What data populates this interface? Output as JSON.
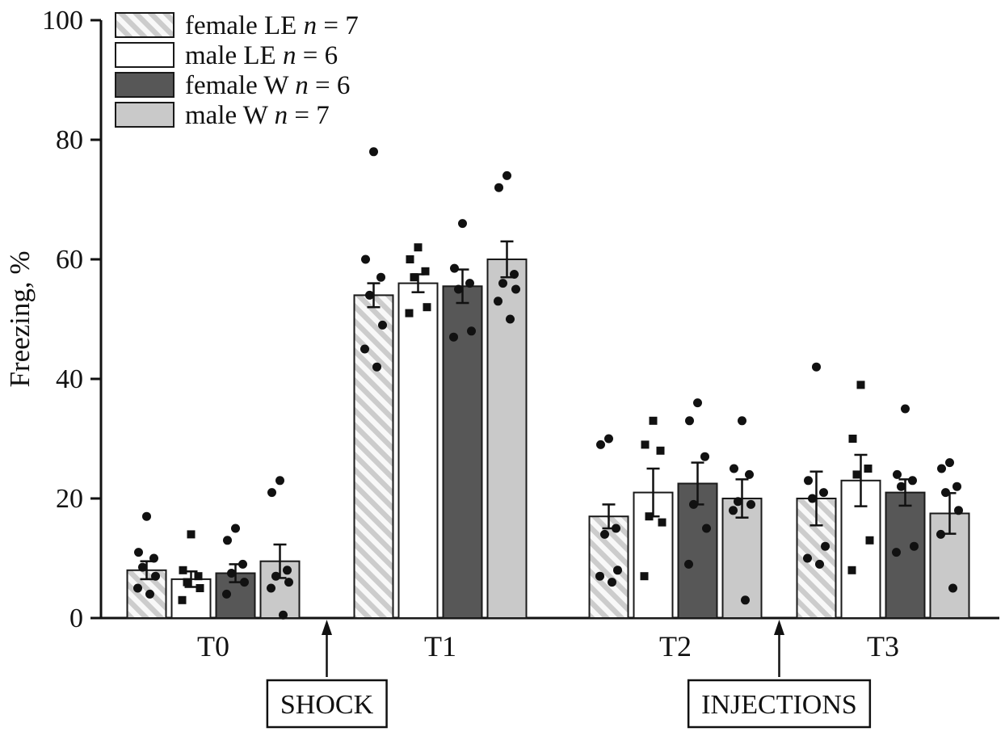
{
  "chart_data": {
    "type": "bar",
    "title": "",
    "ylabel": "Freezing, %",
    "xlabel": "",
    "ylim": [
      0,
      100
    ],
    "yticks": [
      0,
      20,
      40,
      60,
      80,
      100
    ],
    "categories": [
      "T0",
      "T1",
      "T2",
      "T3"
    ],
    "grid": false,
    "legend_position": "top-left",
    "colors": {
      "axis": "#111111",
      "bar_stroke": "#1a1a1a",
      "point": "#111111",
      "hatch_bg": "#f8f8f8",
      "hatch_stripe": "#cccccc",
      "white_bar": "#ffffff",
      "dark_gray_bar": "#575757",
      "light_gray_bar": "#c9c9c9",
      "annotation_box_fill": "#ffffff"
    },
    "series": [
      {
        "name": "female LE n = 7",
        "n": 7,
        "fill": "hatch",
        "marker": "circle",
        "values": [
          8,
          54,
          17,
          20
        ],
        "errors": [
          1.5,
          2,
          2,
          4.5
        ],
        "points": [
          [
            17,
            11,
            10,
            8.5,
            7,
            5,
            4
          ],
          [
            78,
            60,
            57,
            54,
            49,
            45,
            42
          ],
          [
            30,
            29,
            15,
            14,
            8,
            7,
            6
          ],
          [
            42,
            23,
            21,
            20,
            12,
            10,
            9
          ]
        ]
      },
      {
        "name": "male LE n = 6",
        "n": 6,
        "fill": "white",
        "marker": "square",
        "values": [
          6.5,
          56,
          21,
          23
        ],
        "errors": [
          1.3,
          1.5,
          4,
          4.3
        ],
        "points": [
          [
            14,
            8,
            7,
            6,
            5,
            3
          ],
          [
            62,
            60,
            58,
            57,
            52,
            51
          ],
          [
            33,
            29,
            28,
            17,
            16,
            7
          ],
          [
            39,
            30,
            25,
            24,
            13,
            8
          ]
        ]
      },
      {
        "name": "female W n = 6",
        "n": 6,
        "fill": "dark_gray",
        "marker": "circle",
        "values": [
          7.5,
          55.5,
          22.5,
          21
        ],
        "errors": [
          1.5,
          2.8,
          3.5,
          2.2
        ],
        "points": [
          [
            15,
            13,
            9,
            7.5,
            6,
            4
          ],
          [
            66,
            58.5,
            56,
            55,
            48,
            47
          ],
          [
            36,
            33,
            27,
            19,
            15,
            9
          ],
          [
            35,
            24,
            23,
            22,
            12,
            11
          ]
        ]
      },
      {
        "name": "male W n = 7",
        "n": 7,
        "fill": "light_gray",
        "marker": "circle",
        "values": [
          9.5,
          60,
          20,
          17.5
        ],
        "errors": [
          2.8,
          3,
          3.2,
          3.4
        ],
        "points": [
          [
            23,
            21,
            8,
            7,
            6,
            5,
            0.5
          ],
          [
            74,
            72,
            57.5,
            56,
            55,
            53,
            50
          ],
          [
            33,
            25,
            24,
            19.5,
            19,
            18,
            3
          ],
          [
            26,
            25,
            22,
            21,
            18,
            14,
            5
          ]
        ]
      }
    ],
    "annotations": [
      {
        "label": "SHOCK",
        "after_category": "T0"
      },
      {
        "label": "INJECTIONS",
        "after_category": "T2"
      }
    ]
  }
}
